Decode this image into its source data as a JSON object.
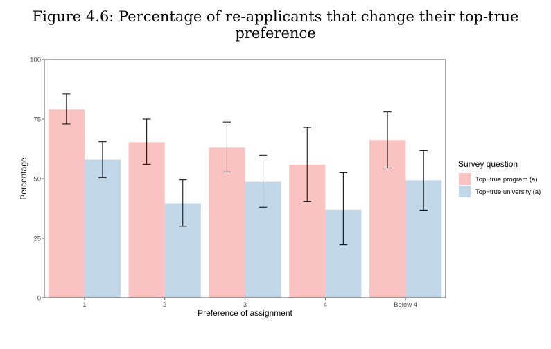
{
  "figure": {
    "title": "Figure 4.6: Percentage of re-applicants that change their top-true preference"
  },
  "chart_data": {
    "type": "bar",
    "xlabel": "Preference of assignment",
    "ylabel": "Percentage",
    "ylim": [
      0,
      100
    ],
    "yticks": [
      0,
      25,
      50,
      75,
      100
    ],
    "categories": [
      "1",
      "2",
      "3",
      "4",
      "Below 4"
    ],
    "legend": {
      "title": "Survey question",
      "placement": "right"
    },
    "series": [
      {
        "name": "Top−true program (a)",
        "color": "#f8c3c0",
        "values": [
          79,
          65.3,
          63,
          55.8,
          66.2
        ],
        "error_low": [
          73,
          56,
          52.8,
          40.5,
          54.5
        ],
        "error_high": [
          85.5,
          75,
          73.8,
          71.5,
          78
        ]
      },
      {
        "name": "Top−true university (a)",
        "color": "#c2d7e8",
        "values": [
          58,
          39.7,
          48.7,
          37,
          49.3
        ],
        "error_low": [
          50.5,
          30,
          38,
          22.2,
          36.8
        ],
        "error_high": [
          65.5,
          49.5,
          59.8,
          52.5,
          61.8
        ]
      }
    ]
  }
}
